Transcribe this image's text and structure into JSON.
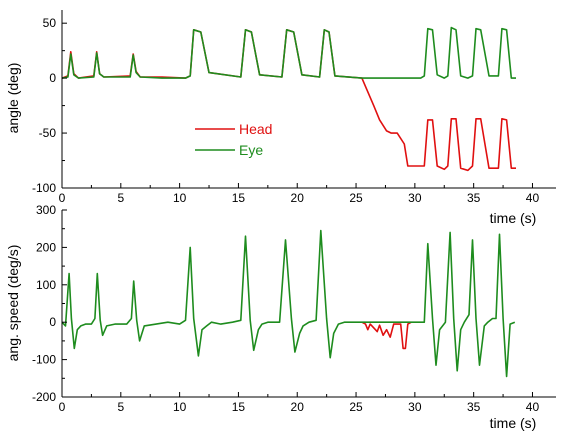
{
  "chart_data": [
    {
      "type": "line",
      "xlabel": "time (s)",
      "ylabel": "angle (deg)",
      "xlim": [
        0,
        42
      ],
      "ylim": [
        -100,
        62
      ],
      "xticks": [
        0,
        5,
        10,
        15,
        20,
        25,
        30,
        35,
        40
      ],
      "yticks": [
        -100,
        -50,
        0,
        50
      ],
      "grid": false,
      "legend_position": "center-left",
      "series": [
        {
          "name": "Head",
          "color": "#e01010",
          "x": [
            0,
            0.5,
            0.75,
            1.0,
            1.4,
            2.7,
            2.95,
            3.2,
            3.55,
            5.8,
            6.05,
            6.3,
            6.65,
            8.5,
            10.5,
            10.9,
            11.2,
            11.8,
            12.5,
            15.2,
            15.6,
            16.1,
            16.8,
            18.7,
            19.1,
            19.7,
            20.4,
            21.9,
            22.3,
            22.7,
            23.2,
            25.5,
            25.9,
            26.5,
            27.0,
            27.6,
            28.0,
            28.5,
            29.1,
            29.4,
            29.7,
            30.8,
            31.1,
            31.5,
            31.9,
            32.5,
            32.8,
            33.1,
            33.5,
            33.9,
            34.5,
            34.9,
            35.2,
            35.6,
            36.3,
            37.1,
            37.4,
            37.8,
            38.2,
            38.6
          ],
          "values": [
            0,
            2,
            24,
            4,
            0,
            2,
            24,
            4,
            1,
            2,
            22,
            6,
            1,
            1,
            0,
            2,
            44,
            42,
            5,
            1,
            44,
            42,
            3,
            1,
            44,
            42,
            3,
            1,
            44,
            42,
            2,
            0,
            -10,
            -25,
            -38,
            -48,
            -50,
            -50,
            -60,
            -80,
            -80,
            -80,
            -38,
            -38,
            -80,
            -83,
            -80,
            -37,
            -37,
            -82,
            -84,
            -80,
            -37,
            -37,
            -82,
            -82,
            -37,
            -38,
            -82,
            -82
          ]
        },
        {
          "name": "Eye",
          "color": "#1e8c1e",
          "x": [
            0,
            0.5,
            0.75,
            1.0,
            1.4,
            2.7,
            2.95,
            3.2,
            3.55,
            5.8,
            6.05,
            6.3,
            6.65,
            8.5,
            10.5,
            10.9,
            11.2,
            11.8,
            12.5,
            15.2,
            15.6,
            16.1,
            16.8,
            18.7,
            19.1,
            19.7,
            20.4,
            21.9,
            22.3,
            22.7,
            23.2,
            25.5,
            30.5,
            30.8,
            31.1,
            31.5,
            31.9,
            32.5,
            32.8,
            33.1,
            33.5,
            33.9,
            34.5,
            34.9,
            35.2,
            35.6,
            36.3,
            37.1,
            37.4,
            37.8,
            38.2,
            38.6
          ],
          "values": [
            0,
            1,
            22,
            3,
            0,
            1,
            23,
            4,
            1,
            1,
            21,
            5,
            1,
            0,
            0,
            2,
            44,
            42,
            5,
            1,
            44,
            42,
            3,
            1,
            44,
            42,
            3,
            1,
            44,
            42,
            2,
            0,
            0,
            2,
            45,
            44,
            3,
            0,
            2,
            46,
            44,
            2,
            0,
            2,
            45,
            44,
            2,
            2,
            45,
            44,
            0,
            0
          ]
        }
      ]
    },
    {
      "type": "line",
      "xlabel": "time (s)",
      "ylabel": "ang. speed (deg/s)",
      "xlim": [
        0,
        42
      ],
      "ylim": [
        -200,
        300
      ],
      "xticks": [
        0,
        5,
        10,
        15,
        20,
        25,
        30,
        35,
        40
      ],
      "yticks": [
        -200,
        -100,
        0,
        100,
        200,
        300
      ],
      "grid": false,
      "series": [
        {
          "name": "Head",
          "color": "#e01010",
          "x": [
            25.5,
            25.8,
            26.0,
            26.2,
            26.5,
            26.8,
            27.0,
            27.3,
            27.6,
            27.9,
            28.2,
            28.8,
            29.0,
            29.2,
            29.4,
            29.7
          ],
          "values": [
            0,
            -5,
            -20,
            -5,
            -15,
            -25,
            -8,
            -35,
            -20,
            -40,
            -5,
            -5,
            -70,
            -70,
            -5,
            0
          ]
        },
        {
          "name": "Eye",
          "color": "#1e8c1e",
          "x": [
            0,
            0.3,
            0.6,
            0.8,
            1.05,
            1.3,
            1.6,
            2.0,
            2.5,
            2.8,
            3.0,
            3.25,
            3.45,
            3.8,
            4.5,
            5.0,
            5.5,
            5.9,
            6.1,
            6.35,
            6.6,
            7.0,
            8.0,
            9.0,
            10.0,
            10.5,
            10.9,
            11.2,
            11.6,
            11.9,
            12.3,
            12.7,
            13.5,
            14.5,
            15.2,
            15.6,
            16.0,
            16.3,
            16.7,
            17.0,
            17.5,
            18.5,
            19.0,
            19.5,
            19.8,
            20.2,
            20.5,
            21.0,
            21.6,
            22.0,
            22.5,
            22.8,
            23.1,
            23.5,
            24.0,
            24.5,
            25.0,
            25.5,
            28.5,
            30.5,
            30.8,
            31.1,
            31.5,
            31.8,
            32.1,
            32.6,
            33.0,
            33.3,
            33.6,
            33.9,
            34.2,
            34.6,
            34.9,
            35.2,
            35.5,
            35.9,
            36.2,
            36.6,
            36.9,
            37.2,
            37.5,
            37.8,
            38.1,
            38.5
          ],
          "values": [
            0,
            -10,
            130,
            10,
            -70,
            -20,
            -10,
            -5,
            -5,
            10,
            130,
            5,
            -35,
            -10,
            -5,
            -5,
            -5,
            10,
            110,
            5,
            -50,
            -10,
            -5,
            0,
            -5,
            5,
            200,
            10,
            -90,
            -20,
            -10,
            0,
            -5,
            0,
            5,
            230,
            5,
            -75,
            -20,
            -5,
            0,
            0,
            220,
            10,
            -80,
            -30,
            -10,
            0,
            5,
            245,
            10,
            -95,
            -30,
            -5,
            0,
            0,
            0,
            0,
            0,
            0,
            0,
            210,
            10,
            -115,
            -20,
            0,
            240,
            10,
            -130,
            -20,
            0,
            20,
            220,
            10,
            -115,
            -10,
            0,
            10,
            10,
            235,
            10,
            -145,
            -5,
            0
          ]
        }
      ]
    }
  ]
}
